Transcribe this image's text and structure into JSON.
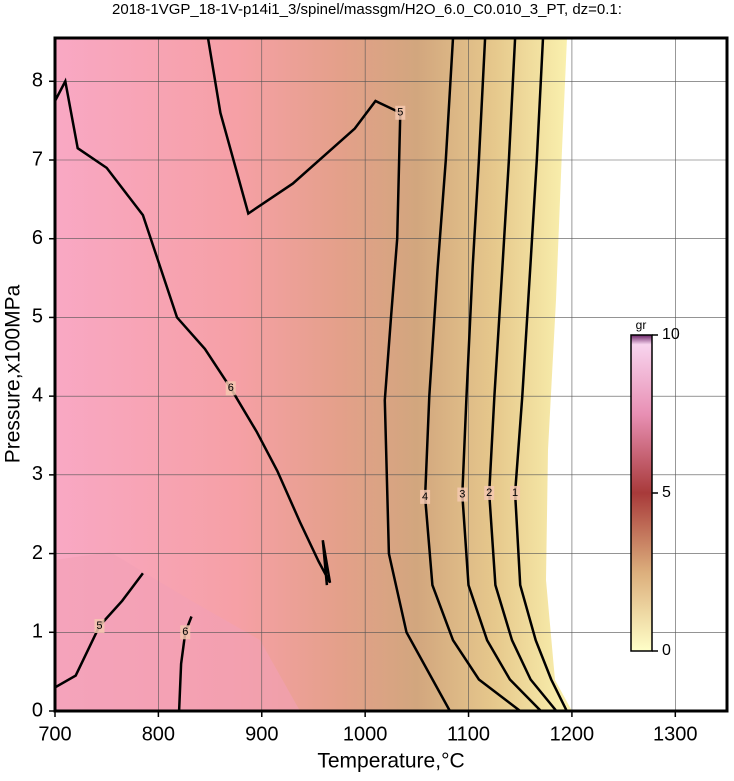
{
  "chart_data": {
    "type": "contour",
    "title": "2018-1VGP_18-1V-p14i1_3/spinel/massgm/H2O_6.0_C0.010_3_PT, dz=0.1:",
    "xlabel": "Temperature,°C",
    "ylabel": "Pressure,x100MPa",
    "xlim": [
      700,
      1350
    ],
    "ylim": [
      0,
      8.55
    ],
    "xticks": [
      700,
      800,
      900,
      1000,
      1100,
      1200,
      1300
    ],
    "yticks": [
      0,
      1,
      2,
      3,
      4,
      5,
      6,
      7,
      8
    ],
    "grid": true,
    "contours": [
      {
        "level": 6,
        "x": [
          700,
          710,
          722,
          750,
          785,
          818,
          845,
          870,
          895,
          915,
          937,
          955,
          966,
          959,
          963
        ],
        "y": [
          7.75,
          8.0,
          7.15,
          6.9,
          6.3,
          5.0,
          4.6,
          4.1,
          3.55,
          3.05,
          2.4,
          1.9,
          1.63,
          2.17,
          1.6
        ]
      },
      {
        "level": 5,
        "x": [
          848,
          860,
          887,
          930,
          990,
          1010,
          1034,
          1031,
          1025,
          1019,
          1023,
          1040,
          1082
        ],
        "y": [
          8.55,
          7.6,
          6.32,
          6.7,
          7.4,
          7.75,
          7.6,
          6.0,
          5.0,
          3.95,
          2.0,
          1.0,
          0
        ]
      },
      {
        "level": 4,
        "x": [
          1085,
          1078,
          1070,
          1062,
          1058,
          1065,
          1085,
          1110,
          1150
        ],
        "y": [
          8.55,
          7.0,
          5.6,
          4.0,
          2.72,
          1.6,
          0.9,
          0.4,
          0
        ]
      },
      {
        "level": 3,
        "x": [
          1116,
          1110,
          1104,
          1098,
          1094,
          1100,
          1118,
          1140,
          1170
        ],
        "y": [
          8.55,
          7.0,
          5.65,
          4.0,
          2.75,
          1.6,
          0.9,
          0.4,
          0
        ]
      },
      {
        "level": 2,
        "x": [
          1145,
          1139,
          1133,
          1125,
          1120,
          1126,
          1142,
          1160,
          1185
        ],
        "y": [
          8.55,
          7.0,
          5.7,
          4.0,
          2.77,
          1.6,
          0.9,
          0.4,
          0
        ]
      },
      {
        "level": 1,
        "x": [
          1172,
          1166,
          1160,
          1152,
          1145,
          1150,
          1165,
          1180,
          1195
        ],
        "y": [
          8.55,
          7.0,
          5.7,
          4.0,
          2.77,
          1.6,
          0.9,
          0.4,
          0
        ]
      },
      {
        "level": 5,
        "x": [
          700,
          720,
          743,
          765,
          785
        ],
        "y": [
          0.3,
          0.45,
          1.08,
          1.4,
          1.75
        ]
      },
      {
        "level": 6,
        "x": [
          820,
          822,
          826,
          832
        ],
        "y": [
          0,
          0.6,
          1.0,
          1.2
        ]
      }
    ],
    "colorbar": {
      "label": "gr",
      "lim": [
        0,
        10
      ],
      "ticks": [
        0,
        5,
        10
      ]
    }
  }
}
